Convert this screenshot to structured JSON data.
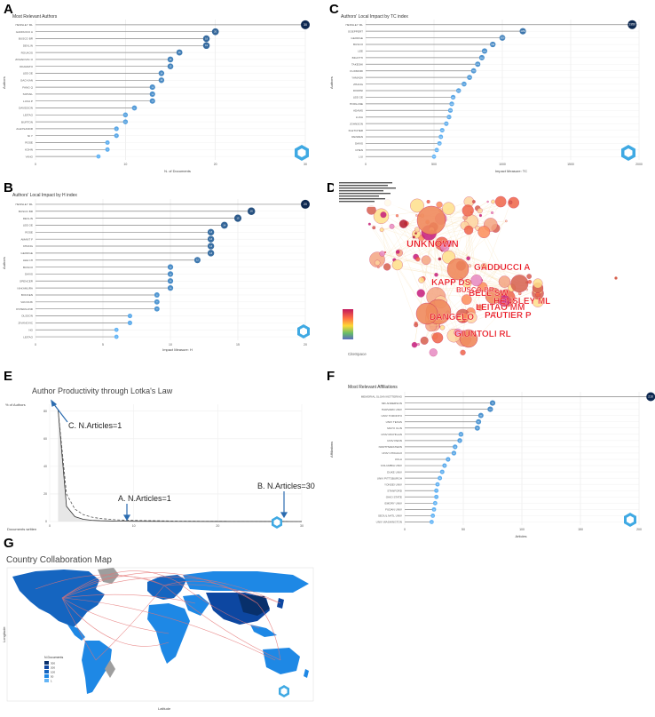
{
  "panels": {
    "a": {
      "letter": "A",
      "title": "Most Relevant Authors",
      "xlabel": "N. of Documents",
      "ylabel": "Authors"
    },
    "b": {
      "letter": "B",
      "title": "Authors' Local Impact by H index",
      "xlabel": "Impact Measure: H",
      "ylabel": "Authors"
    },
    "c": {
      "letter": "C",
      "title": "Authors' Local Impact by TC index",
      "xlabel": "Impact Measure: TC",
      "ylabel": "Authors"
    },
    "d": {
      "letter": "D",
      "watermark": "CiteSpace"
    },
    "e": {
      "letter": "E",
      "title": "Author Productivity through Lotka's Law",
      "ylabel": "% of Authors",
      "xlabel": "Documents written",
      "ann_c": "C.   N.Articles=1",
      "ann_a": "A.   N.Articles=1",
      "ann_b": "B. N.Articles=30"
    },
    "f": {
      "letter": "F",
      "title": "Most Relevant Affiliations",
      "xlabel": "Articles",
      "ylabel": "Affiliations"
    },
    "g": {
      "letter": "G",
      "title": "Country Collaboration Map",
      "xlabel": "Latitude",
      "ylabel": "Longitude",
      "legend_title": "N.Documents",
      "legend_values": [
        "300",
        "200",
        "100",
        "50",
        "1"
      ]
    }
  },
  "chart_data": [
    {
      "id": "most-relevant-authors",
      "type": "lollipop",
      "categories": [
        "HENSLEY ML",
        "GADDUCCI A",
        "BUSCO BR",
        "DEVLIN",
        "ROUKOS",
        "ZIVANOVIC O",
        "OKAMATO",
        "LEE GE",
        "GAO KAN",
        "FANG Q",
        "SOHAIL",
        "LUCA P",
        "DAVIDSON",
        "LEITAO",
        "BURTON",
        "ALEXSANDR",
        "NI Y",
        "ROSE",
        "KOHN",
        "YANG"
      ],
      "values": [
        30,
        20,
        19,
        19,
        16,
        15,
        15,
        14,
        14,
        13,
        13,
        13,
        11,
        10,
        10,
        9,
        9,
        8,
        8,
        7
      ],
      "xlim": [
        0,
        30
      ],
      "xticks": [
        0,
        10,
        20,
        30
      ]
    },
    {
      "id": "h-index",
      "type": "lollipop",
      "categories": [
        "HENSLEY ML",
        "BUSCO BR",
        "DEVLIN",
        "LEE GE",
        "ROSE",
        "AMANT F",
        "CHANG",
        "GEORGE",
        "LEE CH",
        "BUSCO",
        "DAVIS",
        "SPENCER",
        "NAKAMURA",
        "BOCKEN",
        "VAN DIJK",
        "OSTERLUND",
        "OLSSON",
        "ZIVANOVIC",
        "NG",
        "LEITAO"
      ],
      "values": [
        20,
        16,
        15,
        14,
        13,
        13,
        13,
        13,
        12,
        10,
        10,
        10,
        10,
        9,
        9,
        9,
        7,
        7,
        6,
        6
      ],
      "xlim": [
        0,
        20
      ],
      "xticks": [
        0,
        5,
        10,
        15,
        20
      ]
    },
    {
      "id": "tc-index",
      "type": "lollipop",
      "categories": [
        "HENSLEY ML",
        "GOEPPERT",
        "GEORGE",
        "BUSCO",
        "LEE",
        "BIGOTTI",
        "TAKESHI",
        "FUJIMORI",
        "YAMADA",
        "ZHANG",
        "DOMINI",
        "LEE GE",
        "HORLANE",
        "ADAMS",
        "LUCA",
        "JOHNSON",
        "FLETCHER",
        "RENZEN",
        "DAVIS",
        "CHEN",
        "LIU"
      ],
      "values": [
        1950,
        1150,
        1000,
        930,
        870,
        850,
        820,
        790,
        760,
        720,
        680,
        640,
        630,
        620,
        610,
        590,
        560,
        550,
        540,
        520,
        500
      ],
      "xlim": [
        0,
        2000
      ],
      "xticks": [
        0,
        500,
        1000,
        1500,
        2000
      ]
    },
    {
      "id": "citespace-network",
      "type": "network",
      "labels": [
        "UNKNOWN",
        "GADDUCCI A",
        "KAPP DS",
        "BELL SW",
        "HENSLEY ML",
        "LEITAO MM",
        "PAUTIER P",
        "DANGELO",
        "GIUNTOLI RL",
        "BUSCO BR"
      ]
    },
    {
      "id": "lotka",
      "type": "line",
      "x": [
        1,
        2,
        3,
        4,
        5,
        6,
        8,
        10,
        15,
        20,
        25,
        30
      ],
      "series": [
        {
          "values": [
            81,
            11,
            3.5,
            1.6,
            0.9,
            0.6,
            0.3,
            0.2,
            0.1,
            0.05,
            0.03,
            0.02
          ]
        },
        {
          "values": [
            81,
            20,
            9,
            5,
            3.2,
            2.2,
            1.2,
            0.8,
            0.35,
            0.2,
            0.13,
            0.09
          ]
        }
      ],
      "xlim": [
        0,
        30
      ],
      "ylim": [
        0,
        85
      ],
      "xticks": [
        0,
        10,
        20,
        30
      ],
      "yticks": [
        0,
        20,
        40,
        60,
        80
      ]
    },
    {
      "id": "affiliations",
      "type": "lollipop",
      "categories": [
        "MEMORIAL SLOAN KETTERING",
        "MD ANDERSON",
        "HARVARD UNIV",
        "UNIV TORONTO",
        "UNIV TEXAS",
        "MAYO CLIN",
        "UNIV MICHIGAN",
        "UNIV PENN",
        "NORTHWESTERN",
        "UNIV CHICAGO",
        "UCLA",
        "COLUMBIA UNIV",
        "DUKE UNIV",
        "UNIV PITTSBURGH",
        "YONSEI UNIV",
        "STANFORD",
        "OHIO STATE",
        "EMORY UNIV",
        "FUDAN UNIV",
        "SEOUL NATL UNIV",
        "UNIV WASHINGTON"
      ],
      "values": [
        210,
        75,
        73,
        65,
        63,
        62,
        48,
        47,
        43,
        42,
        37,
        34,
        32,
        30,
        28,
        27,
        27,
        26,
        25,
        24,
        23
      ],
      "xlim": [
        0,
        200
      ],
      "xticks": [
        0,
        50,
        100,
        150,
        200
      ]
    },
    {
      "id": "country-collab",
      "type": "map"
    }
  ]
}
